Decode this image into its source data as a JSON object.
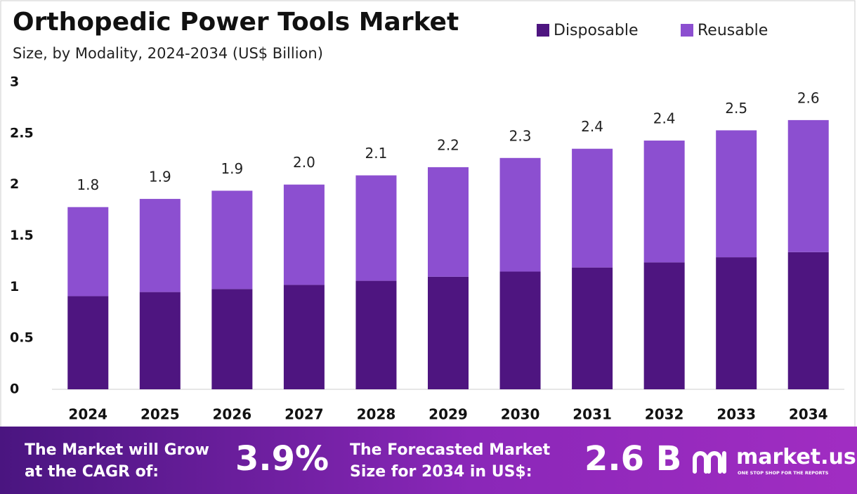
{
  "chart_data": {
    "type": "stacked-bar",
    "title": "Orthopedic Power Tools Market",
    "subtitle": "Size, by Modality, 2024-2034 (US$ Billion)",
    "categories": [
      "2024",
      "2025",
      "2026",
      "2027",
      "2028",
      "2029",
      "2030",
      "2031",
      "2032",
      "2033",
      "2034"
    ],
    "series": [
      {
        "name": "Disposable",
        "color": "#4e1580",
        "values": [
          0.91,
          0.95,
          0.98,
          1.02,
          1.06,
          1.1,
          1.15,
          1.19,
          1.24,
          1.29,
          1.34
        ]
      },
      {
        "name": "Reusable",
        "color": "#8c4fd0",
        "values": [
          0.87,
          0.91,
          0.96,
          0.98,
          1.03,
          1.07,
          1.11,
          1.16,
          1.19,
          1.24,
          1.29
        ]
      }
    ],
    "totals": {
      "values": [
        1.78,
        1.86,
        1.94,
        2.0,
        2.09,
        2.17,
        2.26,
        2.35,
        2.43,
        2.53,
        2.63
      ],
      "value_labels": [
        "1.8",
        "1.9",
        "1.9",
        "2.0",
        "2.1",
        "2.2",
        "2.3",
        "2.4",
        "2.4",
        "2.5",
        "2.6"
      ]
    },
    "ylim": [
      0,
      3
    ],
    "yticks": [
      0,
      0.5,
      1,
      1.5,
      2,
      2.5,
      3
    ],
    "legend": "top-right",
    "grid": false
  },
  "footer": {
    "cagr_text": "The Market will Grow at the CAGR of:",
    "cagr_value": "3.9%",
    "forecast_text": "The Forecasted Market Size for 2034 in US$:",
    "forecast_value": "2.6 B",
    "brand": "market.us",
    "tagline": "ONE STOP SHOP FOR THE REPORTS"
  }
}
